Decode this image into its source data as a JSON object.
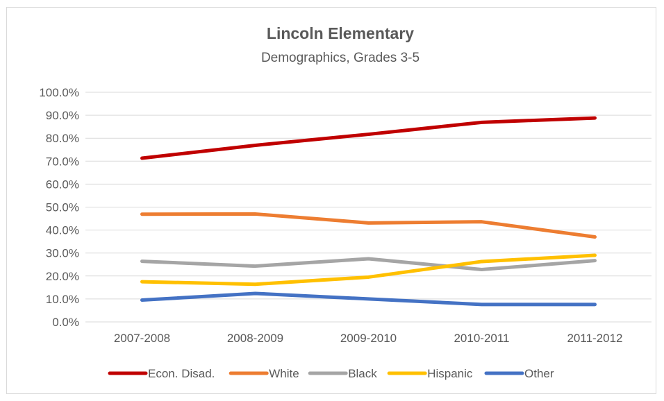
{
  "chart_data": {
    "type": "line",
    "title": "Lincoln Elementary",
    "subtitle": "Demographics, Grades 3-5",
    "xlabel": "",
    "ylabel": "",
    "categories": [
      "2007-2008",
      "2008-2009",
      "2009-2010",
      "2010-2011",
      "2011-2012"
    ],
    "ylim": [
      0,
      100
    ],
    "yticks": [
      "0.0%",
      "10.0%",
      "20.0%",
      "30.0%",
      "40.0%",
      "50.0%",
      "60.0%",
      "70.0%",
      "80.0%",
      "90.0%",
      "100.0%"
    ],
    "grid": true,
    "legend_position": "bottom",
    "series": [
      {
        "name": "Econ. Disad.",
        "color": "#C00000",
        "values": [
          71.3,
          76.9,
          81.7,
          86.9,
          88.8
        ]
      },
      {
        "name": "White",
        "color": "#ED7D31",
        "values": [
          46.9,
          47.0,
          43.1,
          43.6,
          37.0
        ]
      },
      {
        "name": "Black",
        "color": "#A5A5A5",
        "values": [
          26.4,
          24.3,
          27.5,
          22.8,
          26.7
        ]
      },
      {
        "name": "Hispanic",
        "color": "#FFC000",
        "values": [
          17.5,
          16.4,
          19.5,
          26.3,
          29.0
        ]
      },
      {
        "name": "Other",
        "color": "#4472C4",
        "values": [
          9.5,
          12.4,
          10.0,
          7.6,
          7.6
        ]
      }
    ]
  }
}
